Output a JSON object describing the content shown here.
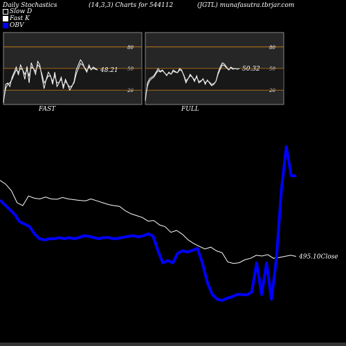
{
  "header": {
    "left": "Daily Stochastics",
    "mid": "(14,3,3) Charts for 544112",
    "right": "(JGTL) munafasutra.tbrjar.com"
  },
  "legend": [
    {
      "label": "Slow  D",
      "color": "#ffffff"
    },
    {
      "label": "Fast K",
      "color": "#ffffff"
    },
    {
      "label": "OBV",
      "color": "#0000ff"
    }
  ],
  "chart_data": [
    {
      "type": "line",
      "name": "FAST",
      "yticks": [
        "80",
        "50",
        "20"
      ],
      "ylim": [
        0,
        100
      ],
      "last_value_label": "48.21",
      "series": [
        {
          "values": [
            2,
            28,
            30,
            25,
            38,
            45,
            52,
            41,
            55,
            48,
            35,
            53,
            30,
            58,
            50,
            42,
            60,
            55,
            38,
            22,
            35,
            45,
            40,
            28,
            45,
            25,
            30,
            38,
            22,
            35,
            28,
            20,
            25,
            32,
            48,
            55,
            62,
            58,
            50,
            45,
            55,
            48,
            52,
            50,
            48
          ]
        },
        {
          "values": [
            5,
            22,
            28,
            30,
            35,
            42,
            48,
            45,
            50,
            48,
            42,
            48,
            40,
            52,
            50,
            46,
            55,
            52,
            42,
            30,
            34,
            40,
            39,
            32,
            40,
            30,
            31,
            35,
            26,
            32,
            28,
            24,
            26,
            30,
            42,
            50,
            57,
            55,
            51,
            47,
            52,
            49,
            50,
            49,
            48
          ]
        }
      ]
    },
    {
      "type": "line",
      "name": "FULL",
      "yticks": [
        "80",
        "50",
        "20"
      ],
      "ylim": [
        0,
        100
      ],
      "last_value_label": "50.32",
      "series": [
        {
          "values": [
            5,
            30,
            36,
            38,
            40,
            45,
            50,
            46,
            48,
            44,
            40,
            45,
            42,
            48,
            46,
            44,
            50,
            48,
            40,
            30,
            36,
            42,
            38,
            32,
            40,
            30,
            32,
            36,
            28,
            34,
            30,
            26,
            28,
            32,
            44,
            52,
            58,
            56,
            52,
            48,
            52,
            50,
            50,
            49,
            50
          ]
        },
        {
          "values": [
            8,
            26,
            33,
            36,
            38,
            43,
            47,
            45,
            47,
            44,
            41,
            44,
            42,
            46,
            45,
            44,
            48,
            47,
            41,
            33,
            36,
            40,
            38,
            34,
            38,
            32,
            33,
            35,
            30,
            33,
            31,
            28,
            29,
            32,
            42,
            49,
            55,
            54,
            51,
            48,
            51,
            49,
            50,
            49,
            50
          ]
        }
      ]
    },
    {
      "type": "line",
      "name": "price-obv",
      "close_label": "495.10Close",
      "series": [
        {
          "name": "Close",
          "values": [
            700,
            690,
            672,
            640,
            632,
            658,
            652,
            650,
            655,
            650,
            649,
            654,
            650,
            648,
            646,
            645,
            650,
            645,
            640,
            635,
            632,
            630,
            618,
            610,
            605,
            600,
            590,
            592,
            580,
            575,
            560,
            565,
            555,
            540,
            530,
            522,
            515,
            520,
            510,
            505,
            480,
            476,
            478,
            486,
            490,
            498,
            496,
            500,
            490,
            492,
            495,
            498,
            495
          ]
        },
        {
          "name": "OBV",
          "values": [
            860,
            840,
            820,
            800,
            770,
            760,
            750,
            720,
            700,
            695,
            700,
            700,
            705,
            700,
            705,
            700,
            705,
            712,
            710,
            705,
            700,
            705,
            705,
            700,
            702,
            706,
            710,
            712,
            708,
            712,
            720,
            712,
            650,
            600,
            610,
            600,
            640,
            650,
            645,
            652,
            660,
            600,
            520,
            470,
            450,
            445,
            455,
            460,
            470,
            470,
            468,
            480,
            600,
            470,
            600,
            450,
            620,
            900,
            1080,
            960,
            960
          ]
        }
      ]
    }
  ]
}
